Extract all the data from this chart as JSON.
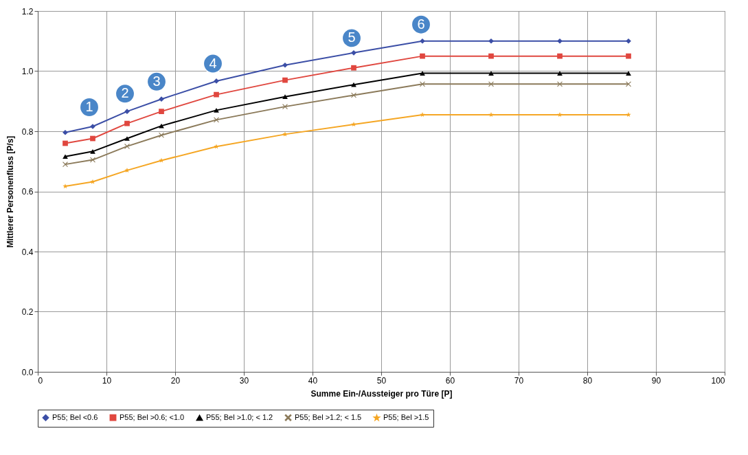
{
  "chart_data": {
    "type": "line",
    "xlabel": "Summe Ein-/Aussteiger pro Türe [P]",
    "ylabel": "Mittlerer Personenfluss [P/s]",
    "x": [
      4,
      8,
      13,
      18,
      26,
      36,
      46,
      56,
      66,
      76,
      86
    ],
    "series": [
      {
        "name": "P55; Bel <0.6",
        "color": "#3b4ea6",
        "marker": "diamond",
        "values": [
          0.796,
          0.816,
          0.866,
          0.907,
          0.967,
          1.02,
          1.061,
          1.1,
          1.1,
          1.1,
          1.1
        ]
      },
      {
        "name": "P55; Bel >0.6; <1.0",
        "color": "#e0473f",
        "marker": "square",
        "values": [
          0.76,
          0.776,
          0.826,
          0.866,
          0.922,
          0.97,
          1.011,
          1.05,
          1.05,
          1.05,
          1.05
        ]
      },
      {
        "name": "P55; Bel >1.0; < 1.2",
        "color": "#000000",
        "marker": "triangle",
        "values": [
          0.716,
          0.733,
          0.776,
          0.818,
          0.87,
          0.915,
          0.955,
          0.993,
          0.993,
          0.993,
          0.993
        ]
      },
      {
        "name": "P55; Bel >1.2; < 1.5",
        "color": "#8b7a5a",
        "marker": "cross",
        "values": [
          0.69,
          0.705,
          0.75,
          0.787,
          0.838,
          0.882,
          0.92,
          0.957,
          0.957,
          0.957,
          0.957
        ]
      },
      {
        "name": "P55; Bel >1.5",
        "color": "#f5a623",
        "marker": "star",
        "values": [
          0.617,
          0.632,
          0.67,
          0.703,
          0.749,
          0.79,
          0.823,
          0.855,
          0.855,
          0.855,
          0.855
        ]
      }
    ],
    "xlim": [
      0,
      100
    ],
    "xticks": [
      0,
      10,
      20,
      30,
      40,
      50,
      60,
      70,
      80,
      90,
      100
    ],
    "ylim": [
      0,
      1.2
    ],
    "yticks": [
      {
        "value": 0,
        "label": "0.0"
      },
      0.2,
      0.4,
      0.6,
      0.8,
      {
        "value": 1,
        "label": "1.0"
      },
      1.2
    ],
    "grid": true,
    "legend": "bottom",
    "annotations": [
      {
        "text": "1",
        "x": 7.5,
        "y": 0.88
      },
      {
        "text": "2",
        "x": 12.7,
        "y": 0.925
      },
      {
        "text": "3",
        "x": 17.3,
        "y": 0.965
      },
      {
        "text": "4",
        "x": 25.5,
        "y": 1.025
      },
      {
        "text": "5",
        "x": 45.7,
        "y": 1.11
      },
      {
        "text": "6",
        "x": 55.8,
        "y": 1.155
      }
    ]
  }
}
